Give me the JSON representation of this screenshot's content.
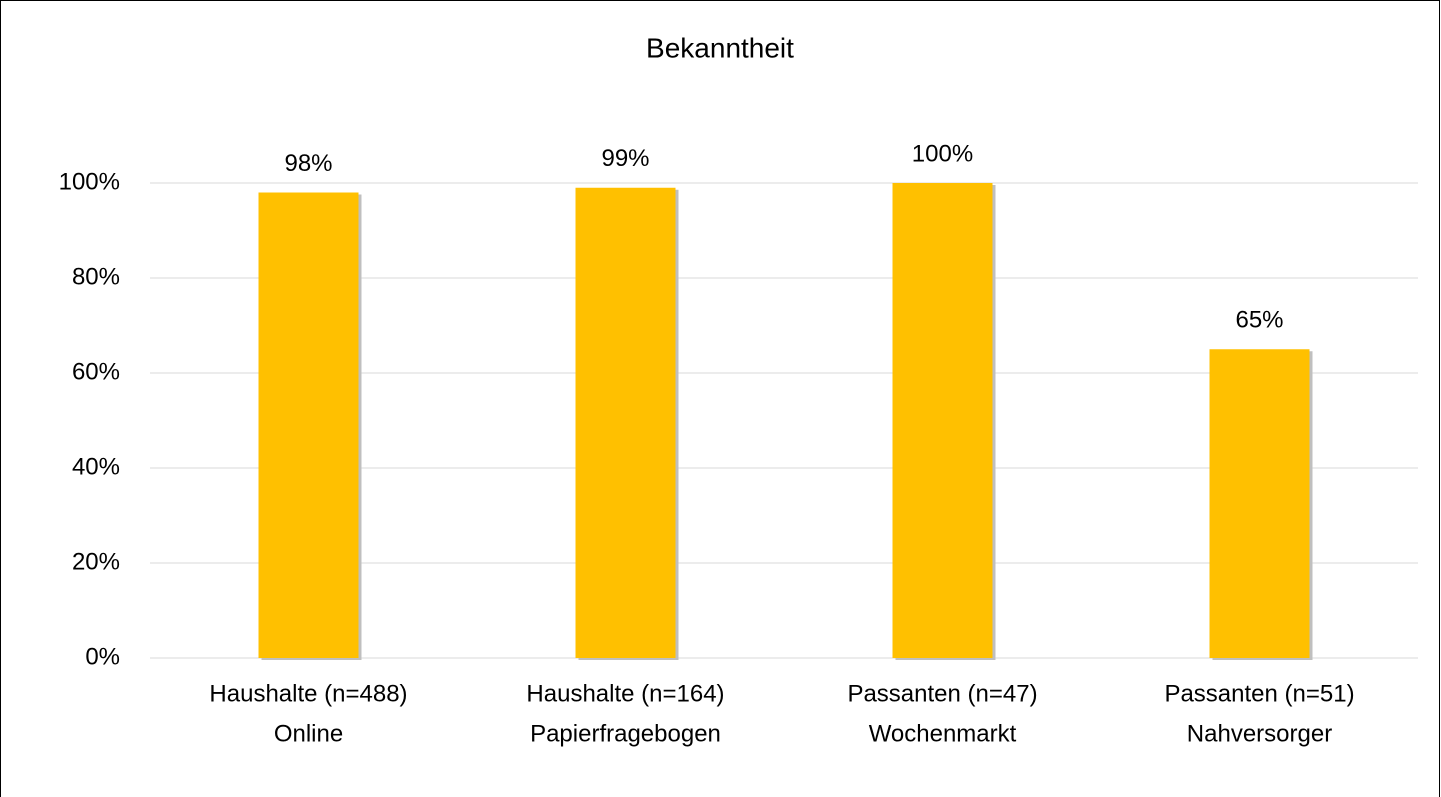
{
  "chart_data": {
    "type": "bar",
    "title": "Bekanntheit",
    "categories": [
      [
        "Haushalte (n=488)",
        "Online"
      ],
      [
        "Haushalte (n=164)",
        "Papierfragebogen"
      ],
      [
        "Passanten (n=47)",
        "Wochenmarkt"
      ],
      [
        "Passanten (n=51)",
        "Nahversorger"
      ]
    ],
    "values": [
      98,
      99,
      100,
      65
    ],
    "value_labels": [
      "98%",
      "99%",
      "100%",
      "65%"
    ],
    "color": "#ffc000",
    "ylim": [
      0,
      100
    ],
    "yticks": [
      {
        "value": 0,
        "label": "0%"
      },
      {
        "value": 20,
        "label": "20%"
      },
      {
        "value": 40,
        "label": "40%"
      },
      {
        "value": 60,
        "label": "60%"
      },
      {
        "value": 80,
        "label": "80%"
      },
      {
        "value": 100,
        "label": "100%"
      }
    ],
    "grid": true
  }
}
